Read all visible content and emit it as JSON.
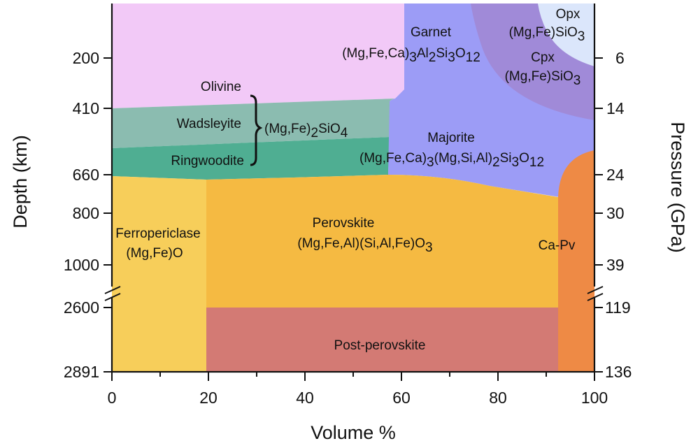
{
  "chart_data": {
    "type": "area",
    "title": "",
    "xlabel": "Volume %",
    "ylabel_left": "Depth (km)",
    "ylabel_right": "Pressure (GPa)",
    "xlim": [
      0,
      100
    ],
    "x_ticks": [
      "0",
      "20",
      "40",
      "60",
      "80",
      "100"
    ],
    "depth_ticks": [
      "200",
      "410",
      "660",
      "800",
      "1000",
      "2600",
      "2891"
    ],
    "pressure_ticks": [
      "6",
      "14",
      "24",
      "30",
      "39",
      "119",
      "136"
    ],
    "axis_break": "between 1000 km and 2600 km",
    "grid": false,
    "legend": "none",
    "olivine_group_formula": "(Mg,Fe)2SiO4",
    "regions": [
      {
        "name": "Olivine",
        "formula": "",
        "color": "#f2c9f7",
        "depth_range": [
          "top",
          "410"
        ],
        "volume_range": [
          0,
          60
        ]
      },
      {
        "name": "Wadsleyite",
        "formula": "",
        "color": "#8bbcb0",
        "depth_range": [
          "410",
          "520"
        ],
        "volume_range": [
          0,
          57
        ]
      },
      {
        "name": "Ringwoodite",
        "formula": "",
        "color": "#4fae92",
        "depth_range": [
          "520",
          "660"
        ],
        "volume_range": [
          0,
          57
        ]
      },
      {
        "name": "Garnet",
        "formula": "(Mg,Fe,Ca)3Al2Si3O12",
        "color": "#9c9cf6",
        "depth_range": [
          "top",
          "410"
        ],
        "volume_range": [
          60,
          100
        ]
      },
      {
        "name": "Majorite",
        "formula": "(Mg,Fe,Ca)3(Mg,Si,Al)2Si3O12",
        "color": "#9c9cf6",
        "depth_range": [
          "410",
          "660"
        ],
        "volume_range": [
          57,
          100
        ]
      },
      {
        "name": "Cpx",
        "formula": "(Mg,Fe)SiO3",
        "color": "#a08ad8",
        "depth_range": [
          "top",
          "410"
        ],
        "volume_range": [
          75,
          100
        ]
      },
      {
        "name": "Opx",
        "formula": "(Mg,Fe)SiO3",
        "color": "#dbe6fb",
        "depth_range": [
          "top",
          "200"
        ],
        "volume_range": [
          88,
          100
        ]
      },
      {
        "name": "Ferropericlase",
        "formula": "(Mg,Fe)O",
        "color": "#f7ce5a",
        "depth_range": [
          "660",
          "2891"
        ],
        "volume_range": [
          0,
          19
        ]
      },
      {
        "name": "Perovskite",
        "formula": "(Mg,Fe,Al)(Si,Al,Fe)O3",
        "color": "#f5ba42",
        "depth_range": [
          "660",
          "2600"
        ],
        "volume_range": [
          19,
          92
        ]
      },
      {
        "name": "Post-perovskite",
        "formula": "",
        "color": "#d37a74",
        "depth_range": [
          "2600",
          "2891"
        ],
        "volume_range": [
          19,
          92
        ]
      },
      {
        "name": "Ca-Pv",
        "formula": "",
        "color": "#ee8a45",
        "depth_range": [
          "660",
          "2891"
        ],
        "volume_range": [
          92,
          100
        ]
      }
    ]
  }
}
